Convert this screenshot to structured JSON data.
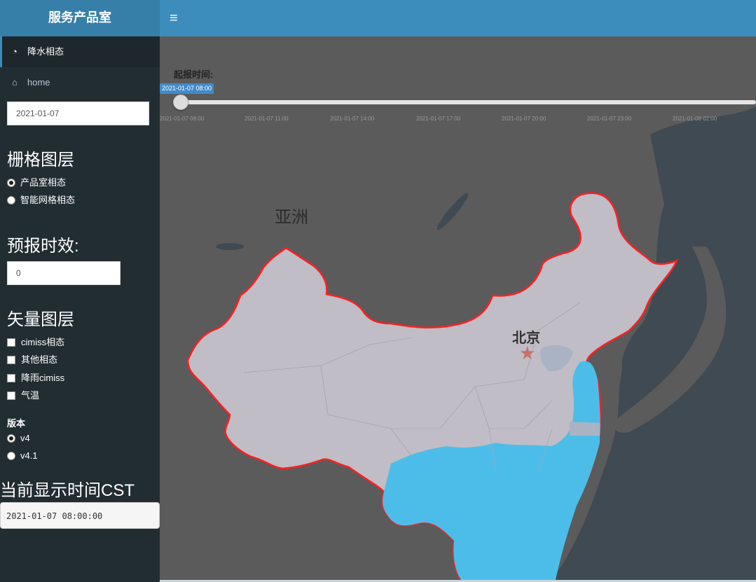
{
  "header": {
    "brand": "服务产品室",
    "toggle_icon": "≡"
  },
  "sidebar": {
    "menu": [
      {
        "icon": "dashboard-icon",
        "glyph": "◔",
        "label": "降水相态"
      },
      {
        "icon": "home-icon",
        "glyph": "⌂",
        "label": "home"
      }
    ],
    "date_value": "2021-01-07",
    "raster": {
      "title": "栅格图层",
      "options": [
        {
          "label": "产品室相态",
          "checked": true
        },
        {
          "label": "智能网格相态",
          "checked": false
        }
      ]
    },
    "forecast": {
      "title": "预报时效:",
      "value": "0"
    },
    "vector": {
      "title": "矢量图层",
      "options": [
        {
          "label": "cimiss相态"
        },
        {
          "label": "其他相态"
        },
        {
          "label": "降雨cimiss"
        },
        {
          "label": "气温"
        }
      ]
    },
    "version": {
      "title": "版本",
      "options": [
        {
          "label": "v4",
          "checked": true
        },
        {
          "label": "v4.1",
          "checked": false
        }
      ]
    },
    "cst": {
      "title": "当前显示时间CST",
      "value": "2021-01-07 08:00:00"
    }
  },
  "map": {
    "slider": {
      "label": "起报时间:",
      "current": "2021-01-07 08:00",
      "position": 0,
      "ticks": [
        "2021-01-07 08:00",
        "2021-01-07 11:00",
        "2021-01-07 14:00",
        "2021-01-07 17:00",
        "2021-01-07 20:00",
        "2021-01-07 23:00",
        "2021-01-08 02:00"
      ]
    },
    "labels": {
      "continent": "亚洲",
      "capital": "北京"
    },
    "colors": {
      "land": "#5b5b5b",
      "sea": "#3f4a52",
      "china": "#c0bdc6",
      "border": "#ff1f1f",
      "rain": "#4cbde8"
    }
  }
}
